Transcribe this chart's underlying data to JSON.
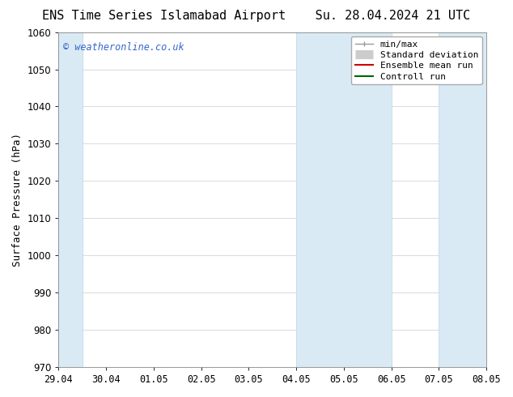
{
  "title_left": "ENS Time Series Islamabad Airport",
  "title_right": "Su. 28.04.2024 21 UTC",
  "ylabel": "Surface Pressure (hPa)",
  "ylim": [
    970,
    1060
  ],
  "yticks": [
    970,
    980,
    990,
    1000,
    1010,
    1020,
    1030,
    1040,
    1050,
    1060
  ],
  "xtick_labels": [
    "29.04",
    "30.04",
    "01.05",
    "02.05",
    "03.05",
    "04.05",
    "05.05",
    "06.05",
    "07.05",
    "08.05"
  ],
  "xtick_positions": [
    0,
    1,
    2,
    3,
    4,
    5,
    6,
    7,
    8,
    9
  ],
  "xlim_min": 0,
  "xlim_max": 9,
  "shaded_bands": [
    {
      "x_start": 0.0,
      "x_end": 0.5
    },
    {
      "x_start": 5.0,
      "x_end": 7.0
    },
    {
      "x_start": 8.0,
      "x_end": 9.0
    }
  ],
  "shaded_color": "#daeaf5",
  "shaded_edge_color": "#b8d4e8",
  "watermark_text": "© weatheronline.co.uk",
  "watermark_color": "#3366cc",
  "bg_color": "#ffffff",
  "grid_color": "#cccccc",
  "title_fontsize": 11,
  "tick_fontsize": 8.5,
  "ylabel_fontsize": 9,
  "legend_fontsize": 8
}
